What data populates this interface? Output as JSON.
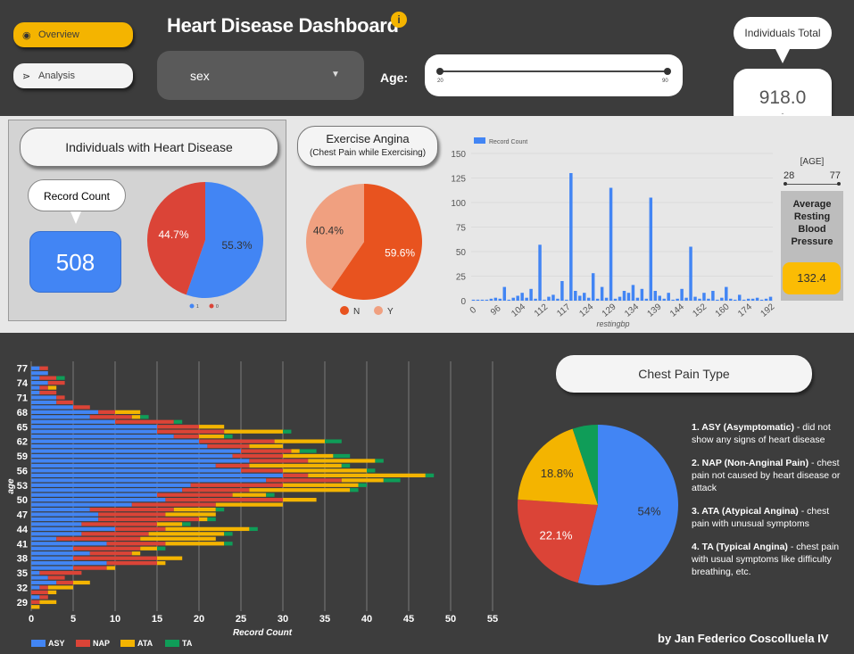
{
  "nav": {
    "overview_label": "Overview",
    "analysis_label": "Analysis"
  },
  "header": {
    "title": "Heart Disease Dashboard",
    "info_icon": "i"
  },
  "filters": {
    "sex_label": "sex",
    "age_label": "Age:",
    "age_min": "20",
    "age_max": "90"
  },
  "individuals_total": {
    "label": "Individuals Total",
    "value": "918.0",
    "sub": "-"
  },
  "heart_disease_panel": {
    "title": "Individuals with Heart Disease",
    "record_count_label": "Record Count",
    "record_count_value": "508"
  },
  "exercise_angina": {
    "title": "Exercise Angina",
    "subtitle": "(Chest Pain while Exercising)"
  },
  "resting_bp": {
    "age_range_label": "[AGE]",
    "age_min": "28",
    "age_max": "77",
    "avg_label_lines": [
      "Average",
      "Resting",
      "Blood",
      "Pressure"
    ],
    "avg_value": "132.4"
  },
  "chest_pain": {
    "title": "Chest Pain Type",
    "notes": [
      {
        "bold": "1. ASY (Asymptomatic)",
        "text": " - did not show any signs of heart disease"
      },
      {
        "bold": "2. NAP (Non-Anginal Pain)",
        "text": " - chest pain not caused by heart disease or attack"
      },
      {
        "bold": "3. ATA (Atypical Angina)",
        "text": " - chest pain with unusual symptoms"
      },
      {
        "bold": "4. TA (Typical Angina)",
        "text": " - chest pain with usual symptoms like difficulty breathing, etc."
      }
    ]
  },
  "author": "by Jan Federico Coscolluela IV",
  "colors": {
    "blue": "#4285f4",
    "red": "#db4437",
    "yellow": "#f4b400",
    "green": "#0f9d58",
    "orange": "#e8531f",
    "salmon": "#f0a080"
  },
  "chart_data": [
    {
      "type": "pie",
      "id": "heart_disease_pie",
      "slices": [
        {
          "label": "1",
          "value": 55.3,
          "display": "55.3%",
          "color": "#4285f4"
        },
        {
          "label": "0",
          "value": 44.7,
          "display": "44.7%",
          "color": "#db4437"
        }
      ],
      "legend": [
        "1",
        "0"
      ]
    },
    {
      "type": "pie",
      "id": "exercise_angina_pie",
      "slices": [
        {
          "label": "N",
          "value": 59.6,
          "display": "59.6%",
          "color": "#e8531f"
        },
        {
          "label": "Y",
          "value": 40.4,
          "display": "40.4%",
          "color": "#f0a080"
        }
      ],
      "legend": [
        "N",
        "Y"
      ]
    },
    {
      "type": "bar",
      "id": "resting_bp_bar",
      "legend": [
        "Record Count"
      ],
      "xlabel": "restingbp",
      "ylim": [
        0,
        150
      ],
      "yticks": [
        0,
        25,
        50,
        75,
        100,
        125,
        150
      ],
      "xticks": [
        "0",
        "96",
        "104",
        "112",
        "117",
        "124",
        "129",
        "134",
        "139",
        "144",
        "152",
        "160",
        "174",
        "192"
      ],
      "values": [
        1,
        1,
        1,
        1,
        2,
        3,
        2,
        14,
        1,
        3,
        5,
        8,
        3,
        12,
        2,
        57,
        1,
        4,
        6,
        2,
        20,
        1,
        130,
        10,
        5,
        8,
        3,
        28,
        2,
        14,
        3,
        115,
        2,
        4,
        10,
        8,
        16,
        3,
        12,
        2,
        105,
        10,
        5,
        2,
        8,
        1,
        2,
        12,
        3,
        55,
        4,
        2,
        8,
        2,
        10,
        1,
        3,
        14,
        2,
        1,
        6,
        1,
        2,
        2,
        3,
        1,
        2,
        4
      ],
      "color": "#4285f4"
    },
    {
      "type": "bar",
      "id": "age_chest_pain_stacked",
      "orientation": "horizontal",
      "ylabel": "age",
      "xlabel": "Record Count",
      "xlim": [
        0,
        55
      ],
      "xticks": [
        0,
        5,
        10,
        15,
        20,
        25,
        30,
        35,
        40,
        45,
        50,
        55
      ],
      "categories": [
        77,
        76,
        75,
        74,
        73,
        72,
        71,
        70,
        69,
        68,
        67,
        66,
        65,
        64,
        63,
        62,
        61,
        60,
        59,
        58,
        57,
        56,
        55,
        54,
        53,
        52,
        51,
        50,
        49,
        48,
        47,
        46,
        45,
        44,
        43,
        42,
        41,
        40,
        39,
        38,
        37,
        36,
        35,
        34,
        33,
        32,
        31,
        30,
        29,
        28
      ],
      "ytick_labels": [
        "77",
        "74",
        "71",
        "68",
        "65",
        "62",
        "59",
        "56",
        "53",
        "50",
        "47",
        "44",
        "41",
        "38",
        "35",
        "32",
        "29"
      ],
      "series": [
        {
          "name": "ASY",
          "color": "#4285f4",
          "values": [
            1,
            2,
            1,
            2,
            1,
            1,
            3,
            3,
            5,
            8,
            7,
            10,
            15,
            15,
            17,
            20,
            21,
            25,
            24,
            26,
            22,
            25,
            30,
            28,
            19,
            18,
            15,
            16,
            12,
            7,
            8,
            8,
            6,
            10,
            6,
            3,
            9,
            5,
            7,
            5,
            9,
            5,
            1,
            2,
            3,
            1,
            0,
            1,
            0,
            0
          ]
        },
        {
          "name": "NAP",
          "color": "#db4437",
          "values": [
            1,
            0,
            2,
            2,
            1,
            2,
            1,
            2,
            2,
            2,
            5,
            7,
            5,
            8,
            3,
            9,
            5,
            6,
            6,
            7,
            4,
            5,
            3,
            9,
            11,
            8,
            9,
            14,
            10,
            10,
            8,
            12,
            9,
            6,
            8,
            10,
            7,
            8,
            5,
            10,
            6,
            4,
            5,
            2,
            2,
            1,
            2,
            1,
            1,
            0
          ]
        },
        {
          "name": "ATA",
          "color": "#f4b400",
          "values": [
            0,
            0,
            0,
            0,
            1,
            0,
            0,
            0,
            0,
            3,
            1,
            0,
            3,
            7,
            3,
            6,
            4,
            1,
            6,
            8,
            11,
            10,
            14,
            5,
            9,
            12,
            4,
            4,
            8,
            5,
            6,
            1,
            3,
            10,
            9,
            9,
            7,
            2,
            1,
            3,
            1,
            1,
            0,
            0,
            2,
            3,
            1,
            0,
            2,
            1
          ]
        },
        {
          "name": "TA",
          "color": "#0f9d58",
          "values": [
            0,
            0,
            1,
            0,
            0,
            0,
            0,
            0,
            0,
            0,
            1,
            1,
            0,
            1,
            1,
            2,
            0,
            2,
            2,
            1,
            1,
            1,
            1,
            2,
            1,
            1,
            1,
            0,
            0,
            1,
            0,
            1,
            1,
            1,
            1,
            0,
            1,
            1,
            0,
            0,
            0,
            0,
            0,
            0,
            0,
            0,
            0,
            0,
            0,
            0
          ]
        }
      ]
    },
    {
      "type": "pie",
      "id": "chest_pain_pie",
      "slices": [
        {
          "label": "ASY",
          "value": 54,
          "display": "54%",
          "color": "#4285f4"
        },
        {
          "label": "NAP",
          "value": 22.1,
          "display": "22.1%",
          "color": "#db4437"
        },
        {
          "label": "ATA",
          "value": 18.8,
          "display": "18.8%",
          "color": "#f4b400"
        },
        {
          "label": "TA",
          "value": 5.1,
          "display": "",
          "color": "#0f9d58"
        }
      ]
    }
  ]
}
